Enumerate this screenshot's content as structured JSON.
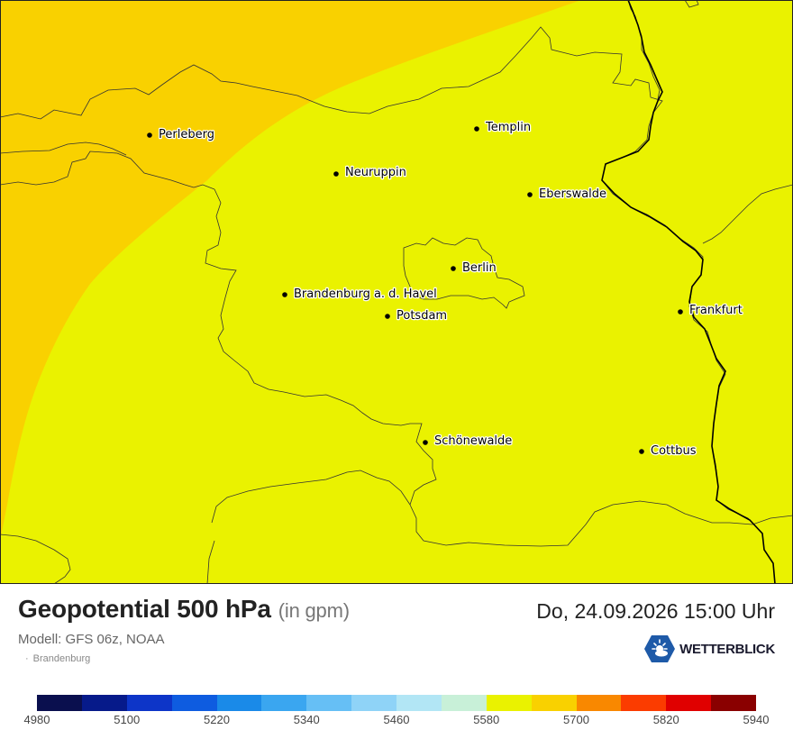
{
  "map": {
    "cities": [
      {
        "name": "Perleberg"
      },
      {
        "name": "Templin"
      },
      {
        "name": "Neuruppin"
      },
      {
        "name": "Eberswalde"
      },
      {
        "name": "Berlin"
      },
      {
        "name": "Brandenburg a. d. Havel"
      },
      {
        "name": "Potsdam"
      },
      {
        "name": "Frankfurt"
      },
      {
        "name": "Schönewalde"
      },
      {
        "name": "Cottbus"
      }
    ],
    "colors": {
      "field_5640_5700": "#eaf200",
      "field_5700_5760": "#f9d100",
      "boundary": "#333333",
      "national_border": "#000000"
    }
  },
  "footer": {
    "title": "Geopotential 500 hPa",
    "unit": "(in gpm)",
    "model": "Modell: GFS 06z, NOAA",
    "region_bullet": "·",
    "region": "Brandenburg",
    "datetime": "Do, 24.09.2026 15:00 Uhr",
    "brand": "WETTERBLICK",
    "brand_icon": "sun-cloud-logo-icon"
  },
  "legend": {
    "tick_labels": [
      "4980",
      "5100",
      "5220",
      "5340",
      "5460",
      "5580",
      "5700",
      "5820",
      "5940"
    ],
    "colors": [
      "#0a0f4e",
      "#061a8a",
      "#0d35c8",
      "#0e5ce0",
      "#1a8ae8",
      "#3aa6f0",
      "#66bff5",
      "#8fd3f7",
      "#b2e6f5",
      "#c8f0d8",
      "#eaf200",
      "#f9d100",
      "#f98800",
      "#fb3c00",
      "#e00000",
      "#8a0000"
    ]
  }
}
